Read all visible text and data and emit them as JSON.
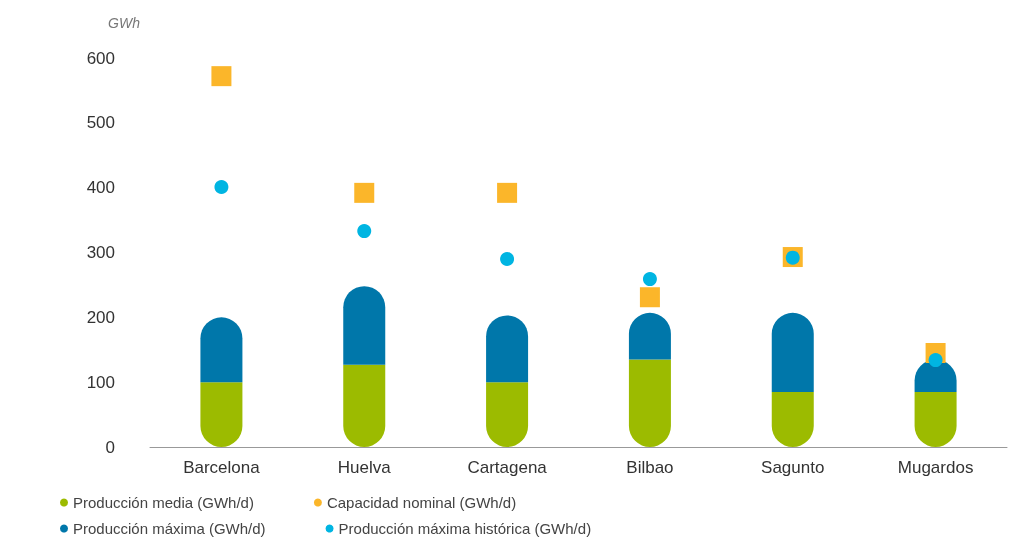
{
  "chart_data": {
    "type": "bar",
    "ylabel": "GWh",
    "stacked": true,
    "categories": [
      "Barcelona",
      "Huelva",
      "Cartagena",
      "Bilbao",
      "Sagunto",
      "Mugardos"
    ],
    "ylim": [
      0,
      600
    ],
    "yticks": [
      0,
      100,
      200,
      300,
      400,
      500,
      600
    ],
    "grid": false,
    "legend": "bottom left",
    "series": [
      {
        "name": "Producción media (GWh/d)",
        "type": "bar",
        "color": "#9cbb00",
        "values": [
          100,
          127,
          100,
          135,
          85,
          85
        ]
      },
      {
        "name": "Capacidad nominal (GWh/d)",
        "type": "scatter",
        "marker": "square",
        "color": "#fbb62a",
        "values": [
          572,
          392,
          392,
          231,
          293,
          145
        ]
      },
      {
        "name": "Producción máxima (GWh/d)",
        "type": "bar",
        "color": "#0077aa",
        "values": [
          100,
          121,
          103,
          72,
          122,
          50
        ]
      },
      {
        "name": "Producción máxima histórica (GWh/d)",
        "type": "scatter",
        "marker": "circle",
        "color": "#00b5e2",
        "values": [
          401,
          333,
          290,
          259,
          292,
          134
        ]
      }
    ]
  }
}
